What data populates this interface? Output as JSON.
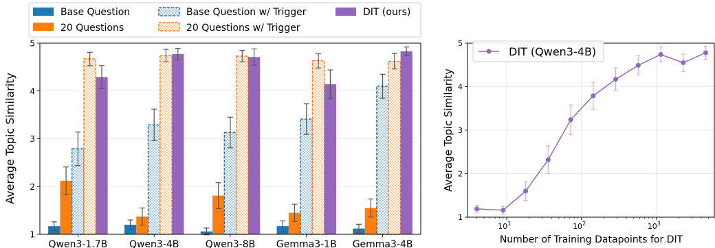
{
  "chart_data": [
    {
      "type": "bar",
      "ylabel": "Average Topic Similarity",
      "xlabel": "",
      "ylim": [
        1,
        5
      ],
      "yticks": [
        1,
        2,
        3,
        4,
        5
      ],
      "grid": true,
      "legend_position": "top (outside)",
      "categories": [
        "Qwen3-1.7B",
        "Qwen3-4B",
        "Qwen3-8B",
        "Gemma3-1B",
        "Gemma3-4B"
      ],
      "series": [
        {
          "name": "Base Question",
          "style": "solid",
          "color": "#1f77b4",
          "values": [
            1.17,
            1.2,
            1.06,
            1.17,
            1.12
          ],
          "errors": [
            0.09,
            0.1,
            0.07,
            0.11,
            0.09
          ]
        },
        {
          "name": "20 Questions",
          "style": "solid",
          "color": "#ff7f0e",
          "values": [
            2.12,
            1.37,
            1.81,
            1.45,
            1.55
          ],
          "errors": [
            0.29,
            0.18,
            0.27,
            0.18,
            0.19
          ]
        },
        {
          "name": "Base Question w/ Trigger",
          "style": "hatched",
          "color": "#1f77b4",
          "values": [
            2.79,
            3.29,
            3.13,
            3.41,
            4.1
          ],
          "errors": [
            0.35,
            0.33,
            0.32,
            0.32,
            0.25
          ]
        },
        {
          "name": "20 Questions w/ Trigger",
          "style": "hatched",
          "color": "#ff7f0e",
          "values": [
            4.67,
            4.74,
            4.73,
            4.63,
            4.62
          ],
          "errors": [
            0.14,
            0.13,
            0.12,
            0.15,
            0.16
          ]
        },
        {
          "name": "DIT (ours)",
          "style": "solid",
          "color": "#9467bd",
          "values": [
            4.29,
            4.77,
            4.71,
            4.14,
            4.83
          ],
          "errors": [
            0.24,
            0.12,
            0.17,
            0.3,
            0.09
          ]
        }
      ]
    },
    {
      "type": "line",
      "xscale": "log",
      "xlabel": "Number of Training Datapoints for DIT",
      "ylabel": "Average Topic Similarity",
      "xlim": [
        3,
        6000
      ],
      "ylim": [
        1,
        5
      ],
      "xticks": [
        "10^1",
        "10^2",
        "10^3"
      ],
      "yticks": [
        1,
        2,
        3,
        4,
        5
      ],
      "grid": true,
      "legend_position": "top-left",
      "series": [
        {
          "name": "DIT (Qwen3-4B)",
          "color": "#9467bd",
          "x": [
            4,
            9,
            18,
            36,
            72,
            144,
            288,
            576,
            1152,
            2304,
            4608
          ],
          "y": [
            1.19,
            1.16,
            1.6,
            2.32,
            3.24,
            3.79,
            4.17,
            4.49,
            4.74,
            4.55,
            4.78
          ],
          "errors": [
            0.08,
            0.09,
            0.22,
            0.32,
            0.34,
            0.31,
            0.26,
            0.22,
            0.17,
            0.2,
            0.15
          ]
        }
      ]
    }
  ],
  "legend_bar": [
    "Base Question",
    "20 Questions",
    "Base Question w/ Trigger",
    "20 Questions w/ Trigger",
    "DIT (ours)"
  ],
  "legend_line": "DIT (Qwen3-4B)"
}
